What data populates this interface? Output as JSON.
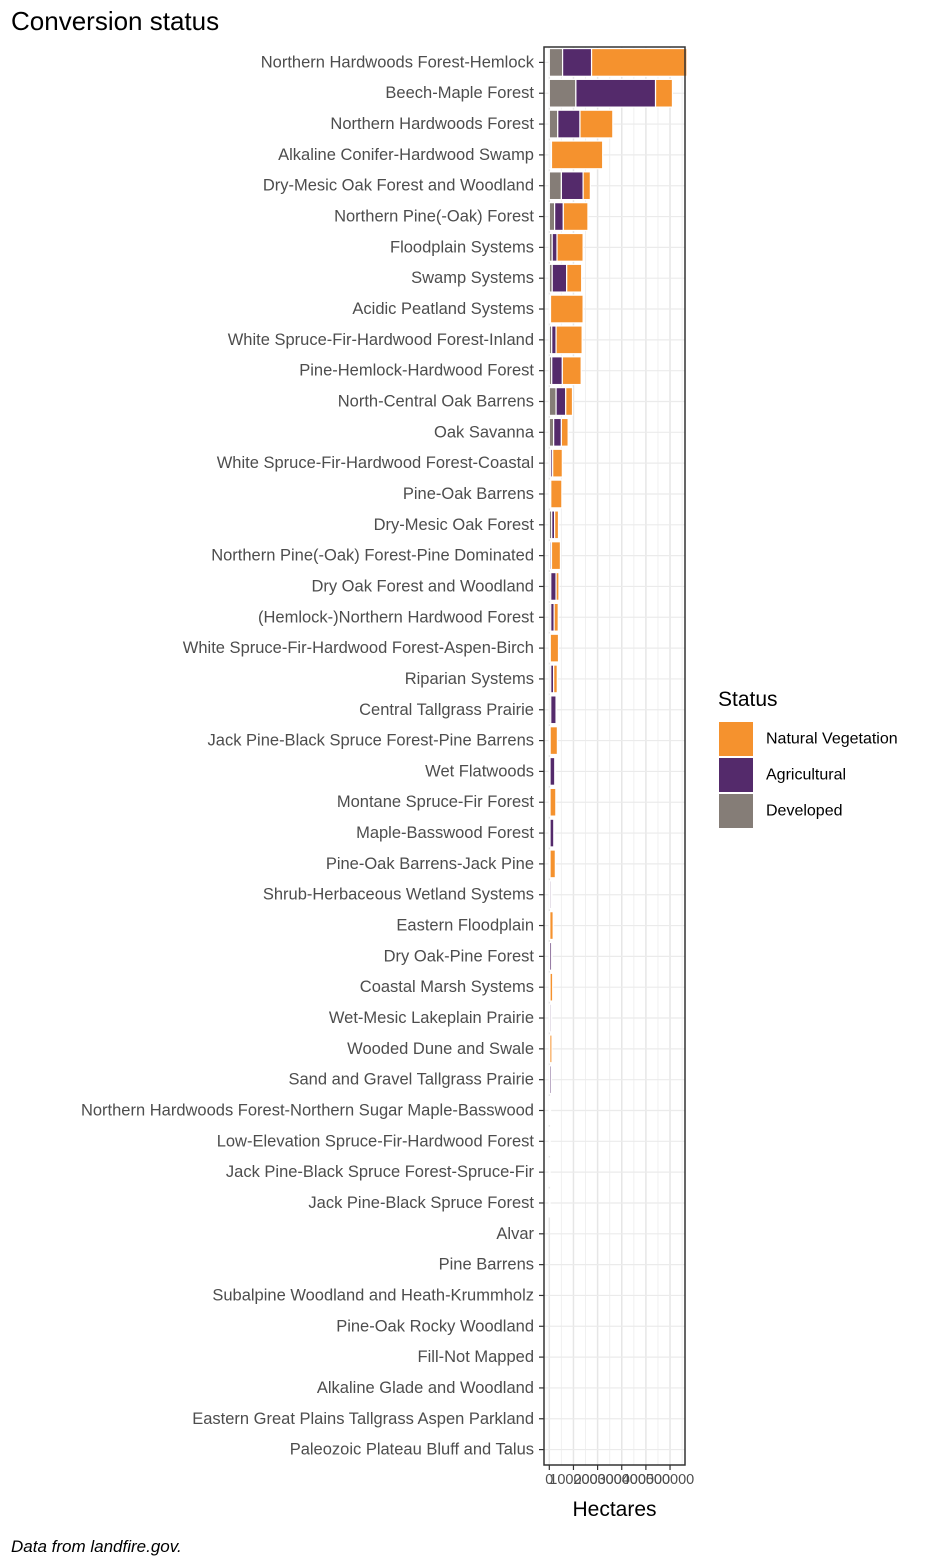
{
  "title": "Conversion status",
  "caption": "Data from landfire.gov.",
  "chart_data": {
    "type": "bar",
    "orientation": "horizontal",
    "stacked": true,
    "xlabel": "Hectares",
    "ylabel": "",
    "xlim": [
      -22000,
      562000
    ],
    "x_ticks": [
      0,
      100000,
      200000,
      300000,
      400000,
      500000
    ],
    "x_tick_labels": [
      "0",
      "100000",
      "200000",
      "300000",
      "400000",
      "500000"
    ],
    "grid": true,
    "legend_title": "Status",
    "legend_position": "right",
    "categories": [
      "Northern Hardwoods Forest-Hemlock",
      "Beech-Maple Forest",
      "Northern Hardwoods Forest",
      "Alkaline Conifer-Hardwood Swamp",
      "Dry-Mesic Oak Forest and Woodland",
      "Northern Pine(-Oak) Forest",
      "Floodplain Systems",
      "Swamp Systems",
      "Acidic Peatland Systems",
      "White Spruce-Fir-Hardwood Forest-Inland",
      "Pine-Hemlock-Hardwood Forest",
      "North-Central Oak Barrens",
      "Oak Savanna",
      "White Spruce-Fir-Hardwood Forest-Coastal",
      "Pine-Oak Barrens",
      "Dry-Mesic Oak Forest",
      "Northern Pine(-Oak) Forest-Pine Dominated",
      "Dry Oak Forest and Woodland",
      "(Hemlock-)Northern Hardwood Forest",
      "White Spruce-Fir-Hardwood Forest-Aspen-Birch",
      "Riparian Systems",
      "Central Tallgrass Prairie",
      "Jack Pine-Black Spruce Forest-Pine Barrens",
      "Wet Flatwoods",
      "Montane Spruce-Fir Forest",
      "Maple-Basswood Forest",
      "Pine-Oak Barrens-Jack Pine",
      "Shrub-Herbaceous Wetland Systems",
      "Eastern Floodplain",
      "Dry Oak-Pine Forest",
      "Coastal Marsh Systems",
      "Wet-Mesic Lakeplain Prairie",
      "Wooded Dune and Swale",
      "Sand and Gravel Tallgrass Prairie",
      "Northern Hardwoods Forest-Northern Sugar Maple-Basswood",
      "Low-Elevation Spruce-Fir-Hardwood Forest",
      "Jack Pine-Black Spruce Forest-Spruce-Fir",
      "Jack Pine-Black Spruce Forest",
      "Alvar",
      "Pine Barrens",
      "Subalpine Woodland and Heath-Krummholz",
      "Pine-Oak Rocky Woodland",
      "Fill-Not Mapped",
      "Alkaline Glade and Woodland",
      "Eastern Great Plains Tallgrass Aspen Parkland",
      "Paleozoic Plateau Bluff and Talus"
    ],
    "series": [
      {
        "name": "Developed",
        "color": "#857d77",
        "values": [
          55000,
          110000,
          35000,
          6000,
          50000,
          22000,
          12000,
          12000,
          3000,
          10000,
          10000,
          28000,
          18000,
          6000,
          3000,
          10000,
          3000,
          6000,
          6000,
          2000,
          6000,
          6000,
          1500,
          3000,
          1500,
          3000,
          1500,
          2000,
          1000,
          2000,
          1500,
          2000,
          1000,
          1000,
          500,
          300,
          300,
          300,
          0,
          0,
          0,
          0,
          0,
          0,
          0,
          0
        ]
      },
      {
        "name": "Agricultural",
        "color": "#542a6b",
        "values": [
          120000,
          330000,
          92000,
          3000,
          90000,
          36000,
          20000,
          60000,
          2000,
          18000,
          44000,
          40000,
          32000,
          8000,
          3000,
          12000,
          6000,
          22000,
          14000,
          2000,
          12000,
          22000,
          2000,
          20000,
          1500,
          16000,
          1500,
          6000,
          1000,
          8000,
          1500,
          6000,
          1000,
          7000,
          500,
          300,
          300,
          300,
          0,
          0,
          0,
          0,
          0,
          0,
          0,
          0
        ]
      },
      {
        "name": "Natural Vegetation",
        "color": "#f5922e",
        "values": [
          395000,
          70000,
          136000,
          212000,
          30000,
          102000,
          108000,
          62000,
          135000,
          108000,
          78000,
          28000,
          28000,
          40000,
          46000,
          16000,
          37000,
          12000,
          17000,
          34000,
          15000,
          2000,
          30000,
          3000,
          24000,
          2000,
          22000,
          3000,
          14000,
          2000,
          11000,
          2000,
          9000,
          1000,
          4000,
          3000,
          2500,
          2500,
          0,
          0,
          0,
          0,
          0,
          0,
          0,
          0
        ]
      }
    ],
    "legend": [
      {
        "name": "Natural Vegetation",
        "color": "#f5922e"
      },
      {
        "name": "Agricultural",
        "color": "#542a6b"
      },
      {
        "name": "Developed",
        "color": "#857d77"
      }
    ]
  }
}
